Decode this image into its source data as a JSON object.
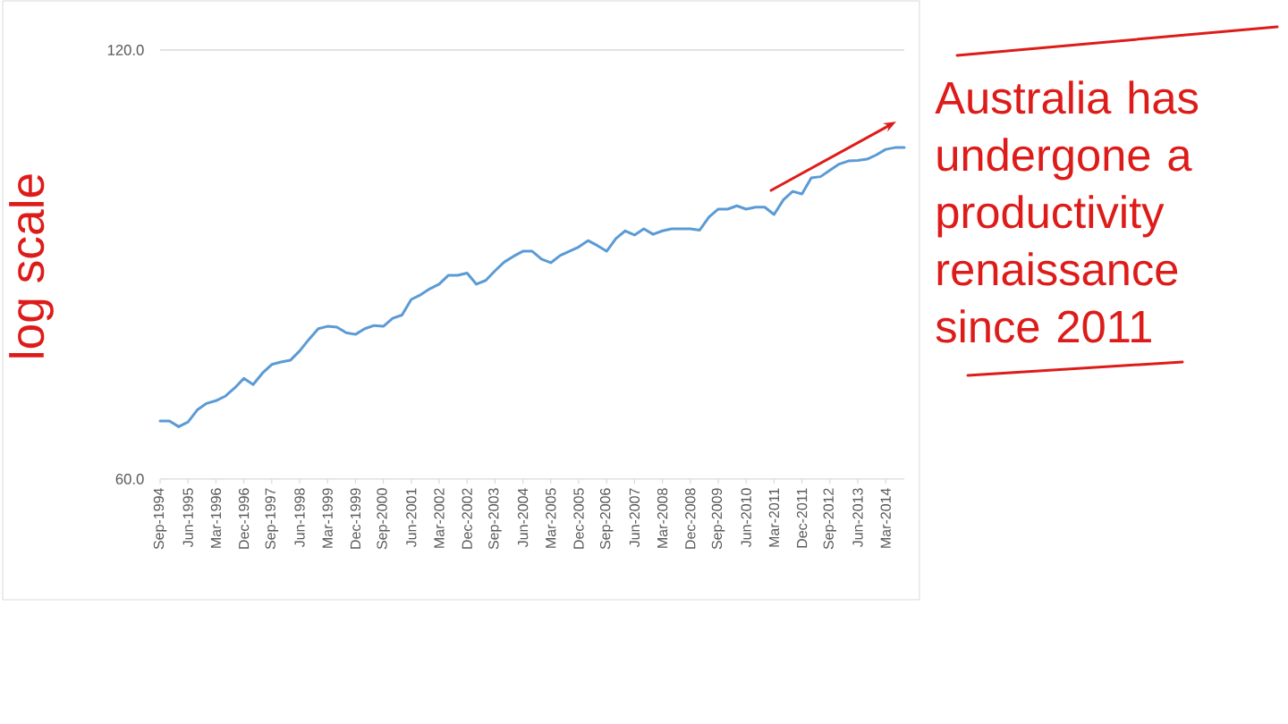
{
  "chart_data": {
    "type": "line",
    "categories": [
      "Sep-1994",
      null,
      null,
      "Jun-1995",
      null,
      null,
      "Mar-1996",
      null,
      null,
      "Dec-1996",
      null,
      null,
      "Sep-1997",
      null,
      null,
      "Jun-1998",
      null,
      null,
      "Mar-1999",
      null,
      null,
      "Dec-1999",
      null,
      null,
      "Sep-2000",
      null,
      null,
      "Jun-2001",
      null,
      null,
      "Mar-2002",
      null,
      null,
      "Dec-2002",
      null,
      null,
      "Sep-2003",
      null,
      null,
      "Jun-2004",
      null,
      null,
      "Mar-2005",
      null,
      null,
      "Dec-2005",
      null,
      null,
      "Sep-2006",
      null,
      null,
      "Jun-2007",
      null,
      null,
      "Mar-2008",
      null,
      null,
      "Dec-2008",
      null,
      null,
      "Sep-2009",
      null,
      null,
      "Jun-2010",
      null,
      null,
      "Mar-2011",
      null,
      null,
      "Dec-2011",
      null,
      null,
      "Sep-2012",
      null,
      null,
      "Jun-2013",
      null,
      null,
      "Mar-2014",
      null,
      null
    ],
    "series": [
      {
        "color": "#5b9bd5",
        "values": [
          65.9,
          65.9,
          65.3,
          65.8,
          67.1,
          67.8,
          68.1,
          68.6,
          69.5,
          70.6,
          69.9,
          71.2,
          72.2,
          72.5,
          72.7,
          73.8,
          75.2,
          76.5,
          76.8,
          76.7,
          76.0,
          75.8,
          76.5,
          76.9,
          76.8,
          77.8,
          78.2,
          80.2,
          80.8,
          81.6,
          82.2,
          83.4,
          83.4,
          83.7,
          82.2,
          82.7,
          84.0,
          85.2,
          86.0,
          86.7,
          86.7,
          85.6,
          85.1,
          86.1,
          86.7,
          87.3,
          88.2,
          87.5,
          86.7,
          88.5,
          89.6,
          89.0,
          89.9,
          89.1,
          89.6,
          89.9,
          89.9,
          89.9,
          89.7,
          91.6,
          92.8,
          92.8,
          93.3,
          92.8,
          93.1,
          93.1,
          92.0,
          94.2,
          95.5,
          95.1,
          97.6,
          97.8,
          98.8,
          99.8,
          100.3,
          100.4,
          100.6,
          101.3,
          102.2,
          102.5,
          102.5
        ]
      }
    ],
    "ylim": [
      60,
      120
    ],
    "yticks": [
      {
        "value": 60,
        "label": "60.0"
      },
      {
        "value": 120,
        "label": "120.0"
      }
    ],
    "log": true,
    "line_style": "solid",
    "annotations": [
      "log scale",
      "Australia has undergone a productivity renaissance since 2011"
    ]
  }
}
